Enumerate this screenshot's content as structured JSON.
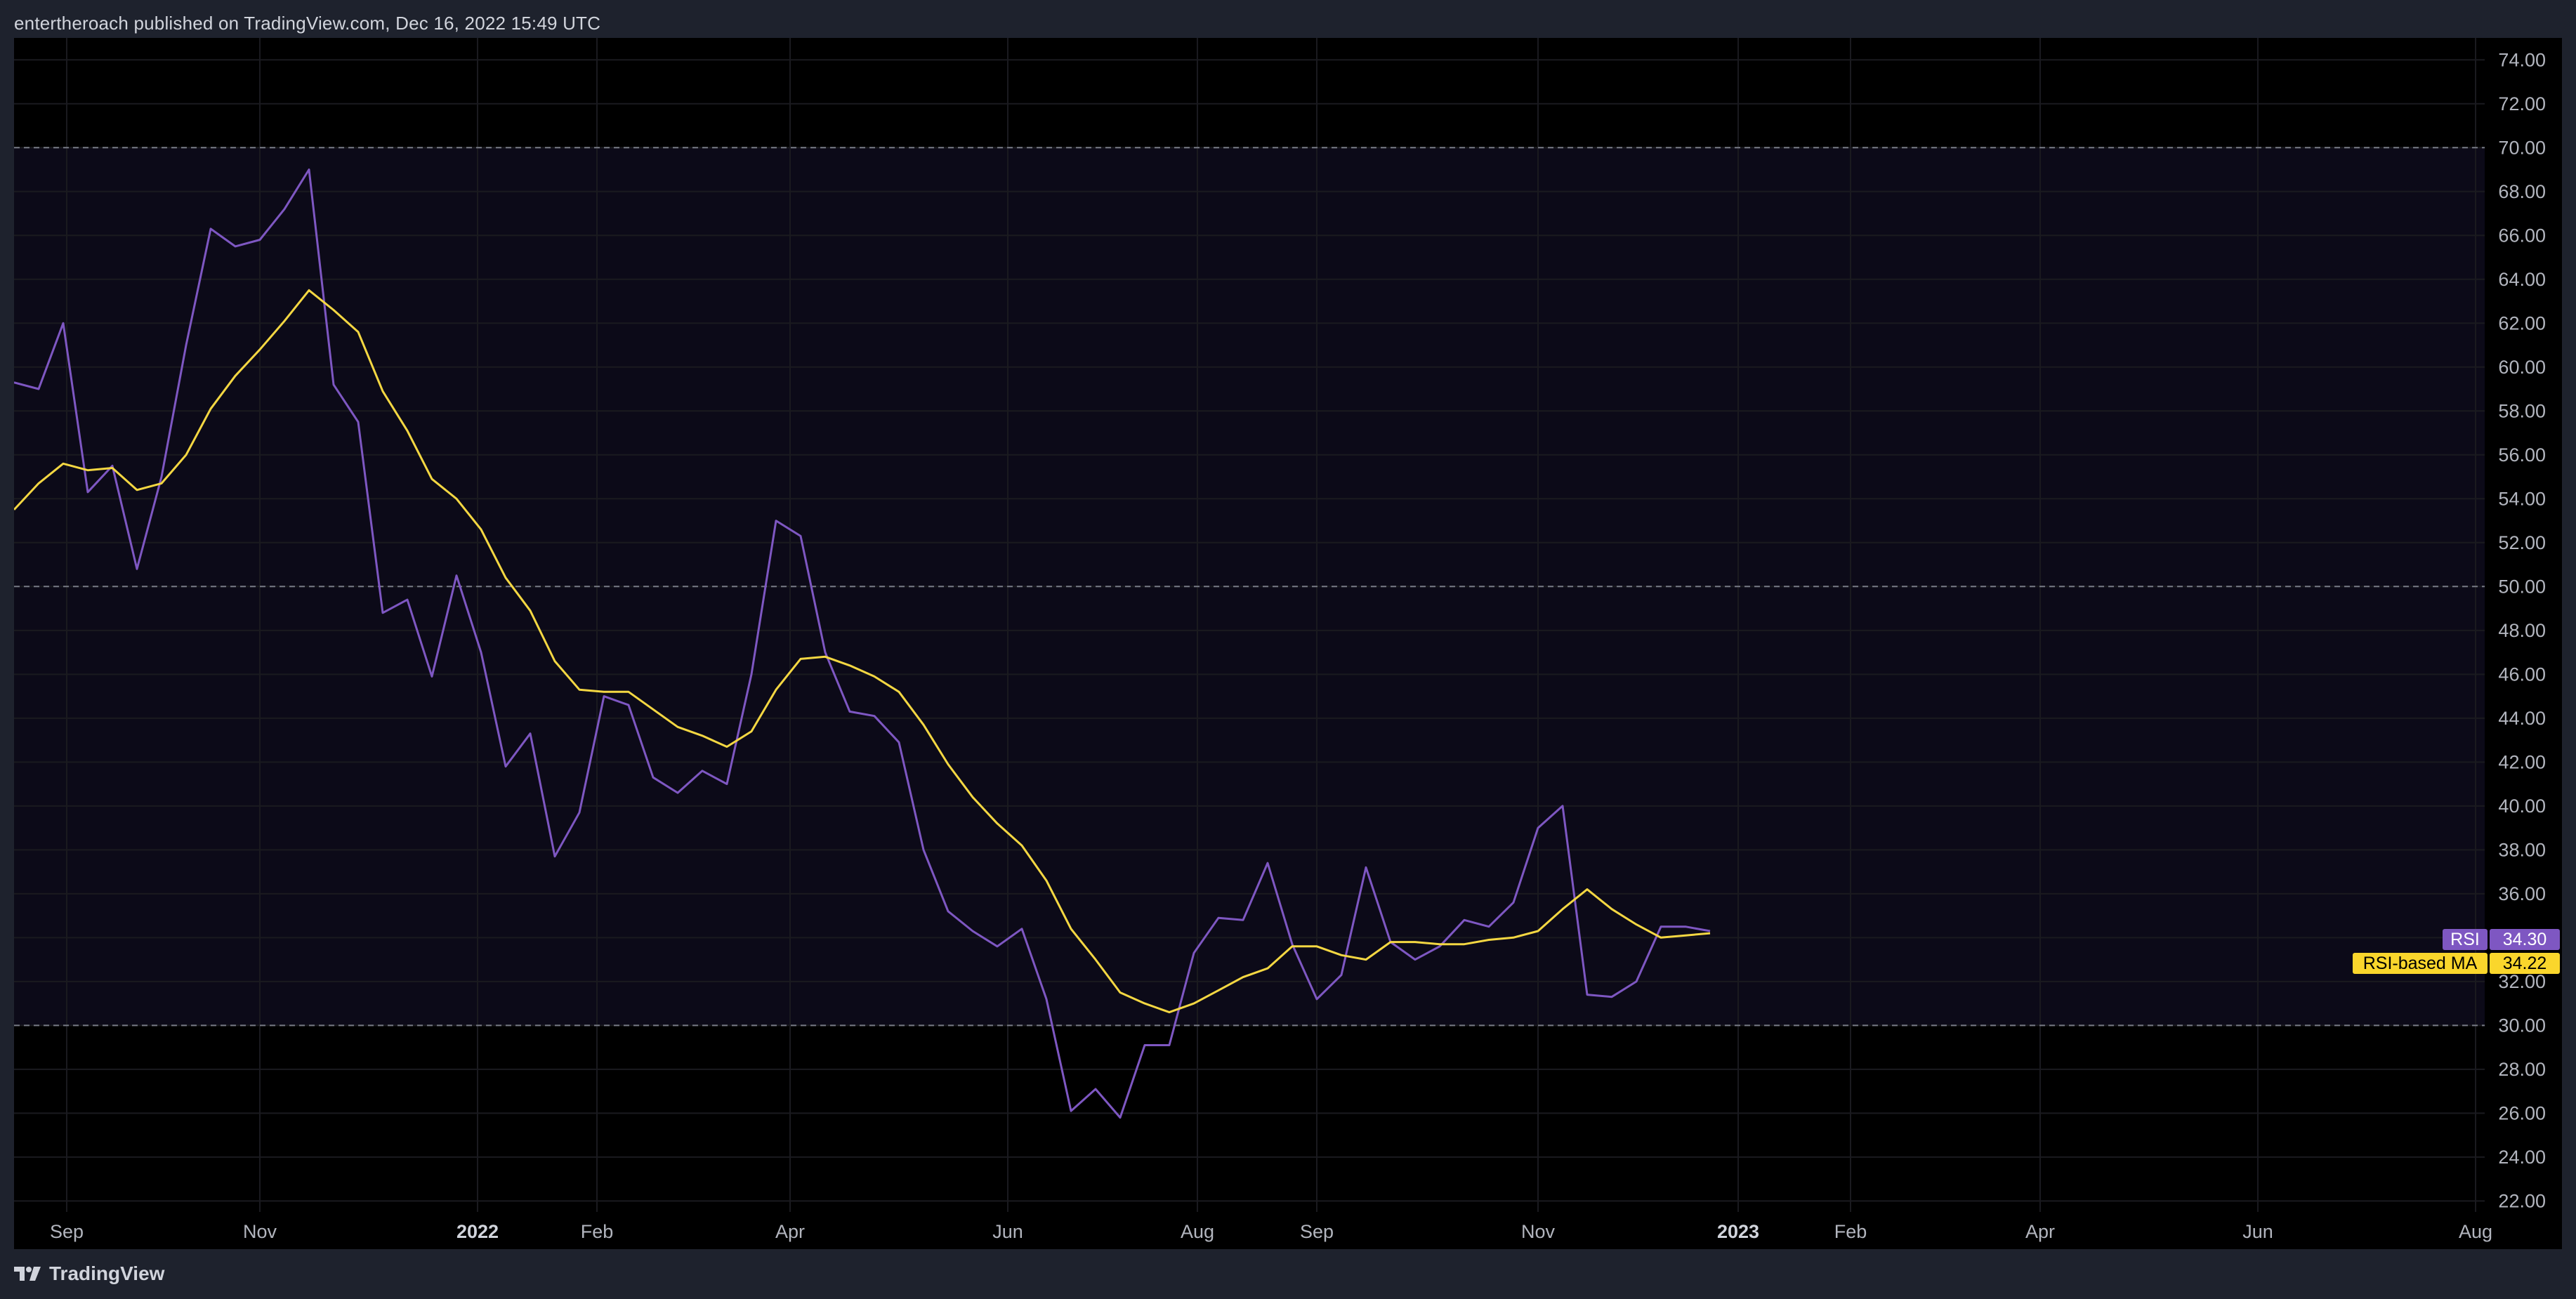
{
  "header": {
    "published": "entertheroach published on TradingView.com, Dec 16, 2022 15:49 UTC"
  },
  "footer": {
    "brand": "TradingView",
    "logo_icon": "tradingview-logo-icon"
  },
  "colors": {
    "background": "#000000",
    "band_fill": "#0c0a18",
    "rsi_line": "#7e57c2",
    "ma_line": "#f4d742",
    "grid": "#1a1a1f",
    "band_line": "#787b86",
    "rsi_tag_bg": "#7e57c2",
    "ma_tag_bg": "#fad62c"
  },
  "chart_data": {
    "type": "line",
    "title": "",
    "xlabel": "",
    "ylabel": "",
    "ylim": [
      21.5,
      75
    ],
    "grid": true,
    "y_ticks": [
      "74.00",
      "72.00",
      "70.00",
      "68.00",
      "66.00",
      "64.00",
      "62.00",
      "60.00",
      "58.00",
      "56.00",
      "54.00",
      "52.00",
      "50.00",
      "48.00",
      "46.00",
      "44.00",
      "42.00",
      "40.00",
      "38.00",
      "36.00",
      "34.00",
      "32.00",
      "30.00",
      "28.00",
      "26.00",
      "24.00",
      "22.00"
    ],
    "x_ticks": [
      {
        "label": "Sep",
        "bold": false
      },
      {
        "label": "Nov",
        "bold": false
      },
      {
        "label": "2022",
        "bold": true
      },
      {
        "label": "Feb",
        "bold": false
      },
      {
        "label": "Apr",
        "bold": false
      },
      {
        "label": "Jun",
        "bold": false
      },
      {
        "label": "Aug",
        "bold": false
      },
      {
        "label": "Sep",
        "bold": false
      },
      {
        "label": "Nov",
        "bold": false
      },
      {
        "label": "2023",
        "bold": true
      },
      {
        "label": "Feb",
        "bold": false
      },
      {
        "label": "Apr",
        "bold": false
      },
      {
        "label": "Jun",
        "bold": false
      },
      {
        "label": "Aug",
        "bold": false
      }
    ],
    "bands": {
      "upper": 70,
      "middle": 50,
      "lower": 30
    },
    "series": [
      {
        "name": "RSI",
        "values": [
          59.3,
          59,
          62,
          54.3,
          55.5,
          50.8,
          55,
          61,
          66.3,
          65.5,
          65.8,
          67.2,
          69,
          59.2,
          57.5,
          48.8,
          49.4,
          45.9,
          50.5,
          47,
          41.8,
          43.3,
          37.7,
          39.7,
          45,
          44.6,
          41.3,
          40.6,
          41.6,
          41,
          46,
          53,
          52.3,
          47,
          44.3,
          44.1,
          42.9,
          38,
          35.2,
          34.3,
          33.6,
          34.4,
          31.2,
          26.1,
          27.1,
          25.8,
          29.1,
          29.1,
          33.3,
          34.9,
          34.8,
          37.4,
          33.7,
          31.2,
          32.3,
          37.2,
          33.8,
          33,
          33.6,
          34.8,
          34.5,
          35.6,
          39,
          40,
          31.4,
          31.3,
          32,
          34.5,
          34.5,
          34.3
        ]
      },
      {
        "name": "RSI-based MA",
        "values": [
          53.5,
          54.7,
          55.6,
          55.3,
          55.4,
          54.4,
          54.7,
          56,
          58.1,
          59.6,
          60.8,
          62.1,
          63.5,
          62.6,
          61.6,
          58.9,
          57.1,
          54.9,
          54,
          52.6,
          50.4,
          48.9,
          46.6,
          45.3,
          45.2,
          45.2,
          44.4,
          43.6,
          43.2,
          42.7,
          43.4,
          45.3,
          46.7,
          46.8,
          46.4,
          45.9,
          45.2,
          43.7,
          41.9,
          40.4,
          39.2,
          38.2,
          36.6,
          34.4,
          33,
          31.5,
          31,
          30.6,
          31,
          31.6,
          32.2,
          32.6,
          33.6,
          33.6,
          33.2,
          33,
          33.8,
          33.8,
          33.7,
          33.7,
          33.9,
          34,
          34.3,
          35.3,
          36.2,
          35.3,
          34.6,
          34,
          34.1,
          34.2
        ]
      }
    ],
    "last_value_tags": [
      {
        "name": "RSI",
        "value": "34.30"
      },
      {
        "name": "RSI-based MA",
        "value": "34.22"
      }
    ]
  }
}
